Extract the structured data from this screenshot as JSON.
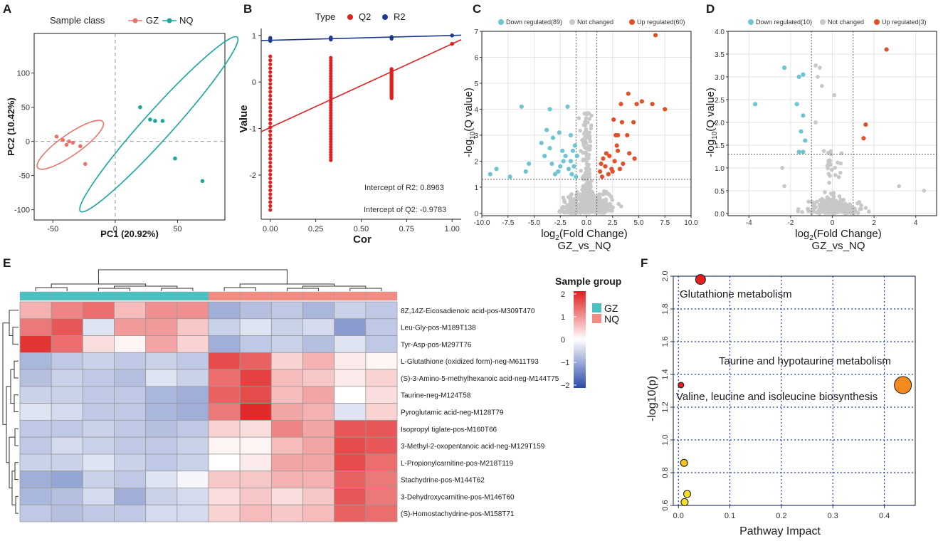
{
  "colors": {
    "gz": "#e8736d",
    "nq": "#1aa79c",
    "q2": "#e01f1f",
    "r2": "#1f3a8f",
    "down": "#6cc5d1",
    "up": "#e0512a",
    "notchanged": "#c8c8c8",
    "hm_low": "#2b4aa8",
    "hm_mid": "#ffffff",
    "hm_high": "#e01f1f",
    "bar_gz": "#4bc0c0",
    "bar_nq": "#f28b82",
    "grid_blue": "#1e3bb5"
  },
  "panels": {
    "A": {
      "label": "A"
    },
    "B": {
      "label": "B"
    },
    "C": {
      "label": "C"
    },
    "D": {
      "label": "D"
    },
    "E": {
      "label": "E"
    },
    "F": {
      "label": "F"
    }
  },
  "chart_data": [
    {
      "id": "A",
      "type": "scatter",
      "title": "",
      "legend_title": "Sample class",
      "legend": [
        "GZ",
        "NQ"
      ],
      "xlabel": "PC1 (20.92%)",
      "ylabel": "PC2 (10.42%)",
      "xlim": [
        -65,
        88
      ],
      "ylim": [
        -115,
        158
      ],
      "xticks": [
        -50,
        0,
        50
      ],
      "yticks": [
        -100,
        -50,
        0,
        50,
        100
      ],
      "series": [
        {
          "name": "GZ",
          "points": [
            [
              -47,
              7
            ],
            [
              -42,
              2
            ],
            [
              -39,
              -5
            ],
            [
              -37,
              0
            ],
            [
              -34,
              -2
            ],
            [
              -28,
              -7
            ],
            [
              -24,
              -33
            ]
          ],
          "ellipse": {
            "cx": -36,
            "cy": -5,
            "rx": 32,
            "ry": 16,
            "angle_deg": -35
          }
        },
        {
          "name": "NQ",
          "points": [
            [
              20,
              50
            ],
            [
              28,
              32
            ],
            [
              32,
              30
            ],
            [
              38,
              30
            ],
            [
              48,
              -25
            ],
            [
              70,
              -58
            ]
          ],
          "ellipse": {
            "cx": 35,
            "cy": 25,
            "rx": 94,
            "ry": 22,
            "angle_deg": -48
          }
        }
      ]
    },
    {
      "id": "B",
      "type": "scatter",
      "legend_title": "Type",
      "legend": [
        "Q2",
        "R2"
      ],
      "xlabel": "Cor",
      "ylabel": "Value",
      "xlim": [
        -0.05,
        1.05
      ],
      "ylim": [
        -2.95,
        1.15
      ],
      "xticks": [
        0.0,
        0.25,
        0.5,
        0.75,
        1.0
      ],
      "xtick_labels": [
        "0.00",
        "0.25",
        "0.50",
        "0.75",
        "1.00"
      ],
      "yticks": [
        -2,
        -1,
        0,
        1
      ],
      "series": [
        {
          "name": "R2",
          "columns": [
            {
              "x": 0,
              "min": 0.88,
              "max": 0.95
            },
            {
              "x": 0.333,
              "min": 0.91,
              "max": 0.96
            },
            {
              "x": 0.667,
              "min": 0.93,
              "max": 0.97
            },
            {
              "x": 1.0,
              "min": 1.0,
              "max": 1.0
            }
          ],
          "line": {
            "intercept": 0.8963,
            "slope": 0.104
          }
        },
        {
          "name": "Q2",
          "columns": [
            {
              "x": 0,
              "min": -2.75,
              "max": 0.55
            },
            {
              "x": 0.333,
              "min": -1.68,
              "max": 0.52
            },
            {
              "x": 0.667,
              "min": -0.35,
              "max": 0.28
            },
            {
              "x": 1.0,
              "min": 0.82,
              "max": 0.82
            }
          ],
          "line": {
            "intercept": -0.9783,
            "slope": 1.798
          }
        }
      ],
      "annotations": [
        "Intercept of R2: 0.8963",
        "Intercept of Q2: -0.9783"
      ]
    },
    {
      "id": "C",
      "type": "scatter",
      "title": "",
      "legend": [
        "Down regulated(89)",
        "Not changed",
        "Up regulated(60)"
      ],
      "xlabel_log": "log",
      "xlabel_sub": "2",
      "xlabel_rest": "(Fold Change)",
      "xlabel2": "GZ_vs_NQ",
      "ylabel_pre": "-log",
      "ylabel_sub": "10",
      "ylabel_rest": "(Q value)",
      "xlim": [
        -10,
        10
      ],
      "ylim": [
        -0.1,
        7
      ],
      "xticks": [
        -10.0,
        -7.5,
        -5.0,
        -2.5,
        0.0,
        2.5,
        5.0,
        7.5,
        10.0
      ],
      "xtick_labels": [
        "-10.0",
        "-7.5",
        "-5.0",
        "-2.5",
        "0.0",
        "2.5",
        "5.0",
        "7.5",
        "10.0"
      ],
      "yticks": [
        0,
        1,
        2,
        3,
        4,
        5,
        6,
        7
      ],
      "vlines": [
        -1,
        1
      ],
      "hline": 1.3,
      "up_points": [
        [
          6.6,
          6.85
        ],
        [
          3.3,
          4.2
        ],
        [
          4.0,
          4.6
        ],
        [
          4.8,
          4.2
        ],
        [
          5.3,
          4.3
        ],
        [
          6.3,
          4.2
        ],
        [
          7.5,
          4.0
        ],
        [
          2.6,
          3.6
        ],
        [
          3.0,
          3.0
        ],
        [
          3.4,
          3.5
        ],
        [
          2.8,
          3.0
        ],
        [
          3.9,
          3.0
        ],
        [
          4.5,
          3.5
        ],
        [
          2.9,
          2.6
        ],
        [
          3.0,
          2.4
        ],
        [
          2.2,
          2.2
        ],
        [
          1.6,
          2.1
        ],
        [
          1.8,
          1.8
        ],
        [
          2.4,
          1.7
        ],
        [
          3.5,
          1.9
        ],
        [
          4.1,
          2.3
        ],
        [
          1.3,
          1.6
        ],
        [
          2.1,
          1.5
        ],
        [
          1.5,
          1.4
        ],
        [
          2.7,
          2.0
        ],
        [
          3.2,
          1.7
        ],
        [
          4.6,
          2.1
        ],
        [
          1.9,
          2.3
        ],
        [
          2.5,
          1.6
        ],
        [
          1.4,
          1.9
        ]
      ],
      "down_points": [
        [
          -6.2,
          4.1
        ],
        [
          -3.5,
          4.0
        ],
        [
          -1.8,
          4.1
        ],
        [
          -8.6,
          1.7
        ],
        [
          -9.2,
          1.5
        ],
        [
          -7.3,
          1.4
        ],
        [
          -5.5,
          1.9
        ],
        [
          -5.8,
          1.6
        ],
        [
          -3.8,
          3.2
        ],
        [
          -3.2,
          2.9
        ],
        [
          -2.6,
          3.1
        ],
        [
          -1.5,
          3.0
        ],
        [
          -4.3,
          2.7
        ],
        [
          -3.5,
          2.5
        ],
        [
          -2.3,
          2.4
        ],
        [
          -1.3,
          2.4
        ],
        [
          -4.0,
          2.2
        ],
        [
          -2.0,
          2.2
        ],
        [
          -1.2,
          1.8
        ],
        [
          -3.3,
          1.9
        ],
        [
          -1.7,
          1.7
        ],
        [
          -2.7,
          1.6
        ],
        [
          -1.1,
          2.6
        ],
        [
          -1.5,
          2.0
        ],
        [
          -0.9,
          2.2
        ],
        [
          -2.2,
          2.0
        ],
        [
          -3.0,
          1.5
        ],
        [
          -1.0,
          1.4
        ],
        [
          -1.4,
          1.5
        ],
        [
          -2.5,
          1.8
        ]
      ]
    },
    {
      "id": "D",
      "type": "scatter",
      "legend": [
        "Down regulated(10)",
        "Not changed",
        "Up regulated(3)"
      ],
      "xlabel_log": "log",
      "xlabel_sub": "2",
      "xlabel_rest": "(Fold Change)",
      "xlabel2": "GZ_vs_NQ",
      "ylabel_pre": "-log",
      "ylabel_sub": "10",
      "ylabel_rest": "(Q value)",
      "xlim": [
        -5,
        5
      ],
      "ylim": [
        -0.05,
        4.0
      ],
      "xticks": [
        -4,
        -2,
        0,
        2,
        4
      ],
      "yticks": [
        0.0,
        0.5,
        1.0,
        1.5,
        2.0,
        2.5,
        3.0,
        3.5,
        4.0
      ],
      "ytick_labels": [
        "0.0",
        "0.5",
        "1.0",
        "1.5",
        "2.0",
        "2.5",
        "3.0",
        "3.5",
        "4.0"
      ],
      "vlines": [
        -1,
        1
      ],
      "hline": 1.3,
      "up_points": [
        [
          2.6,
          3.6
        ],
        [
          1.6,
          1.95
        ],
        [
          1.5,
          1.65
        ]
      ],
      "down_points": [
        [
          -3.7,
          2.4
        ],
        [
          -2.3,
          3.2
        ],
        [
          -1.6,
          3.0
        ],
        [
          -1.4,
          3.05
        ],
        [
          -1.7,
          2.4
        ],
        [
          -1.4,
          2.15
        ],
        [
          -1.5,
          1.8
        ],
        [
          -1.3,
          1.6
        ],
        [
          -1.6,
          1.35
        ],
        [
          -1.4,
          1.35
        ]
      ],
      "notable_grey": [
        [
          -0.8,
          3.25
        ],
        [
          -0.6,
          3.2
        ],
        [
          -0.7,
          3.0
        ],
        [
          -0.5,
          2.8
        ],
        [
          0.1,
          2.6
        ],
        [
          -0.8,
          2.0
        ],
        [
          -2.4,
          1.0
        ],
        [
          -2.3,
          0.6
        ],
        [
          4.4,
          0.5
        ],
        [
          3.2,
          0.6
        ]
      ]
    },
    {
      "id": "E",
      "type": "heatmap",
      "legend_title": "Sample group",
      "group_legend": [
        "GZ",
        "NQ"
      ],
      "scale_ticks": [
        2,
        1,
        0,
        -1,
        -2
      ],
      "scale_tick_labels": [
        "2",
        "1",
        "0",
        "−1",
        "−2"
      ],
      "rows": [
        "8Z,14Z-Eicosadienoic acid-pos-M309T470",
        "Leu-Gly-pos-M189T138",
        "Tyr-Asp-pos-M297T76",
        "L-Glutathione (oxidized form)-neg-M611T93",
        "(S)-3-Amino-5-methylhexanoic acid-neg-M144T75",
        "Taurine-neg-M124T58",
        "Pyroglutamic acid-neg-M128T79",
        "Isopropyl tiglate-pos-M160T66",
        "3-Methyl-2-oxopentanoic acid-neg-M129T159",
        "L-Propionylcarnitine-pos-M218T119",
        "Stachydrine-pos-M144T62",
        "3-Dehydroxycarnitine-pos-M146T60",
        "(S)-Homostachydrine-pos-M158T71"
      ],
      "column_groups": [
        "GZ",
        "GZ",
        "GZ",
        "GZ",
        "GZ",
        "GZ",
        "NQ",
        "NQ",
        "NQ",
        "NQ",
        "NQ",
        "NQ"
      ],
      "values": [
        [
          0.7,
          1.1,
          1.3,
          0.6,
          1.0,
          1.0,
          -0.9,
          -0.7,
          -0.6,
          -0.8,
          -0.5,
          -0.6
        ],
        [
          1.2,
          1.5,
          -0.3,
          0.9,
          0.9,
          0.5,
          -0.5,
          -0.3,
          -0.5,
          -0.4,
          -1.1,
          -0.6
        ],
        [
          1.8,
          1.3,
          0.3,
          0.1,
          0.8,
          0.4,
          -0.9,
          -0.6,
          -0.5,
          -0.7,
          -0.3,
          -0.6
        ],
        [
          -0.8,
          -0.6,
          -0.5,
          -0.6,
          -0.5,
          -0.6,
          1.6,
          1.4,
          0.4,
          0.7,
          0.2,
          0.1
        ],
        [
          -0.7,
          -0.5,
          -0.6,
          -0.7,
          -0.3,
          -0.5,
          1.3,
          1.7,
          0.6,
          0.5,
          0.2,
          0.4
        ],
        [
          -0.5,
          -0.5,
          -0.6,
          -0.6,
          -0.8,
          -0.9,
          1.4,
          1.6,
          0.6,
          0.8,
          0.0,
          0.3
        ],
        [
          -0.3,
          -0.4,
          -0.6,
          -0.6,
          -0.8,
          -0.9,
          1.2,
          1.9,
          0.8,
          0.7,
          -0.3,
          0.4
        ],
        [
          -0.6,
          -0.6,
          -0.5,
          -0.6,
          -0.7,
          -0.6,
          0.4,
          0.3,
          1.1,
          0.8,
          1.5,
          1.5
        ],
        [
          -0.6,
          -0.4,
          -0.5,
          -0.6,
          -0.6,
          -0.5,
          0.1,
          0.1,
          0.6,
          0.8,
          1.6,
          1.5
        ],
        [
          -0.5,
          -0.5,
          -0.3,
          -0.5,
          -0.6,
          -0.5,
          0.0,
          0.2,
          0.8,
          0.8,
          1.6,
          1.3
        ],
        [
          -0.9,
          -1.0,
          -0.5,
          -0.6,
          -0.3,
          -0.1,
          0.5,
          0.5,
          0.7,
          0.7,
          1.4,
          1.2
        ],
        [
          -0.8,
          -0.7,
          -0.4,
          -0.9,
          -0.5,
          -0.4,
          0.3,
          0.5,
          0.3,
          0.5,
          1.5,
          1.2
        ],
        [
          -0.6,
          -0.7,
          -0.6,
          -0.6,
          -0.4,
          -0.4,
          0.4,
          0.6,
          0.5,
          0.6,
          1.4,
          1.3
        ]
      ]
    },
    {
      "id": "F",
      "type": "scatter",
      "xlabel": "Pathway Impact",
      "ylabel": "-log10(p)",
      "xlim": [
        -0.01,
        0.46
      ],
      "ylim": [
        0.6,
        2.0
      ],
      "xticks": [
        0.0,
        0.1,
        0.2,
        0.3,
        0.4
      ],
      "xtick_labels": [
        "0.0",
        "0.1",
        "0.2",
        "0.3",
        "0.4"
      ],
      "yticks": [
        0.6,
        0.8,
        1.0,
        1.2,
        1.4,
        1.6,
        1.8,
        2.0
      ],
      "ytick_labels": [
        "0.6",
        "0.8",
        "1.0",
        "1.2",
        "1.4",
        "1.6",
        "1.8",
        "2.0"
      ],
      "points": [
        {
          "x": 0.043,
          "y": 1.98,
          "size": 7,
          "color": "#e0201c"
        },
        {
          "x": 0.436,
          "y": 1.335,
          "size": 12,
          "color": "#f28a1e"
        },
        {
          "x": 0.005,
          "y": 1.335,
          "size": 4,
          "color": "#e0201c"
        },
        {
          "x": 0.011,
          "y": 0.86,
          "size": 5,
          "color": "#f2c418"
        },
        {
          "x": 0.017,
          "y": 0.67,
          "size": 5,
          "color": "#f7de2a"
        },
        {
          "x": 0.012,
          "y": 0.62,
          "size": 5,
          "color": "#f7de2a"
        }
      ],
      "annotations": [
        "Glutathione metabolism",
        "Taurine and hypotaurine metabolism",
        "Valine, leucine and isoleucine biosynthesis"
      ]
    }
  ]
}
